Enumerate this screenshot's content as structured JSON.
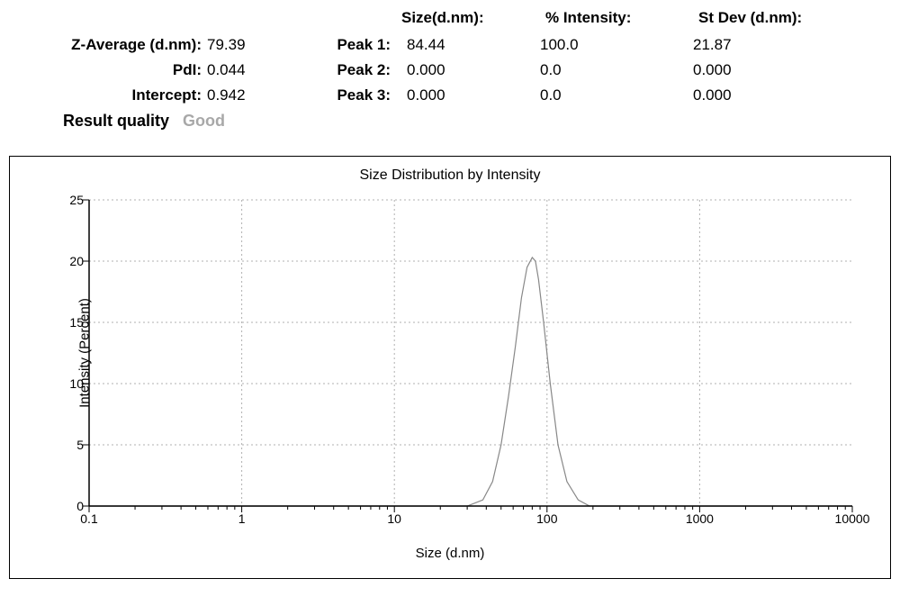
{
  "headers": {
    "size": "Size(d.nm):",
    "intensity": "% Intensity:",
    "stdev": "St Dev (d.nm):"
  },
  "left_labels": {
    "zavg": "Z-Average (d.nm):",
    "pdi": "PdI:",
    "intercept": "Intercept:",
    "result_quality": "Result quality"
  },
  "left_values": {
    "zavg": "79.39",
    "pdi": "0.044",
    "intercept": "0.942",
    "result_quality": "Good"
  },
  "peak_labels": {
    "p1": "Peak 1:",
    "p2": "Peak 2:",
    "p3": "Peak 3:"
  },
  "peaks": [
    {
      "size": "84.44",
      "intensity": "100.0",
      "stdev": "21.87"
    },
    {
      "size": "0.000",
      "intensity": "0.0",
      "stdev": "0.000"
    },
    {
      "size": "0.000",
      "intensity": "0.0",
      "stdev": "0.000"
    }
  ],
  "chart": {
    "title": "Size Distribution by Intensity",
    "xlabel": "Size (d.nm)",
    "ylabel": "Intensity (Percent)",
    "type": "line",
    "x_scale": "log",
    "xlim": [
      0.1,
      10000
    ],
    "ylim": [
      0,
      25
    ],
    "x_ticks": [
      0.1,
      1,
      10,
      100,
      1000,
      10000
    ],
    "x_tick_labels": [
      "0.1",
      "1",
      "10",
      "100",
      "1000",
      "10000"
    ],
    "y_ticks": [
      0,
      5,
      10,
      15,
      20,
      25
    ],
    "grid_color": "#b0b0b0",
    "axis_color": "#000000",
    "line_color": "#888888",
    "line_width": 1.2,
    "background_color": "#ffffff",
    "grid_dash": "2,3",
    "tick_len_major_out": 7,
    "tick_len_minor_out": 4,
    "series_x": [
      30,
      38,
      44,
      50,
      56,
      62,
      68,
      74,
      80,
      84,
      88,
      95,
      105,
      118,
      135,
      160,
      190
    ],
    "series_y": [
      0,
      0.5,
      2,
      5,
      9,
      13,
      17,
      19.5,
      20.3,
      20,
      18.5,
      15,
      10,
      5,
      2,
      0.5,
      0
    ]
  }
}
